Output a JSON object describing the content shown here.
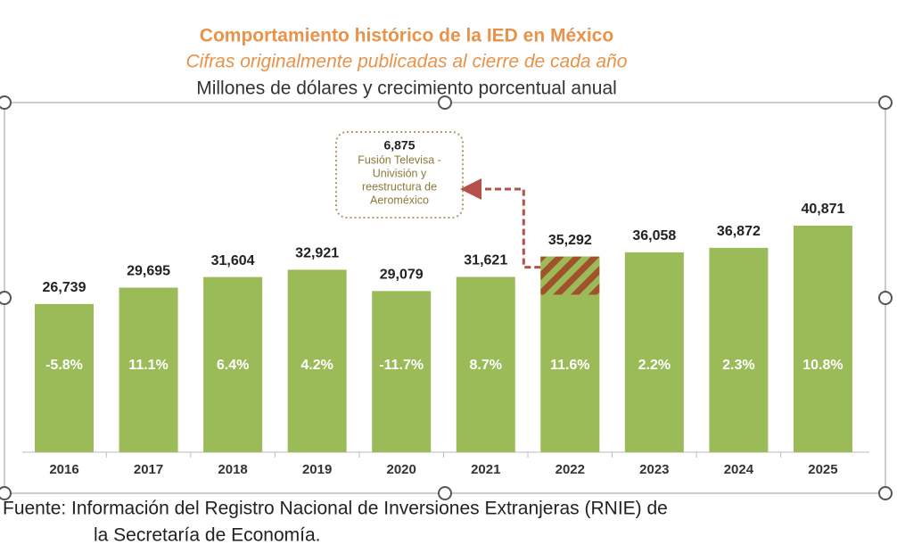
{
  "chart_data": {
    "type": "bar",
    "title": "Comportamiento histórico de la IED en México",
    "subtitle": "Cifras originalmente publicadas al cierre de cada año",
    "units_note": "Millones de dólares y crecimiento porcentual anual",
    "categories": [
      "2016",
      "2017",
      "2018",
      "2019",
      "2020",
      "2021",
      "2022",
      "2023",
      "2024",
      "2025"
    ],
    "values": [
      26739,
      29695,
      31604,
      32921,
      29079,
      31621,
      35292,
      36058,
      36872,
      40871
    ],
    "value_labels": [
      "26,739",
      "29,695",
      "31,604",
      "32,921",
      "29,079",
      "31,621",
      "35,292",
      "36,058",
      "36,872",
      "40,871"
    ],
    "growth_labels": [
      "-5.8%",
      "11.1%",
      "6.4%",
      "4.2%",
      "-11.7%",
      "8.7%",
      "11.6%",
      "2.2%",
      "2.3%",
      "10.8%"
    ],
    "color": "#9bbb59",
    "hatched_segment": {
      "category": "2022",
      "value": 6875,
      "value_label": "6,875",
      "text_lines": [
        "Fusión Televisa -",
        "Univisión y",
        "reestructura de",
        "Aeroméxico"
      ],
      "color": "#a0522d"
    },
    "source": [
      "Fuente: Información del Registro Nacional de Inversiones Extranjeras (RNIE) de",
      "la Secretaría de Economía."
    ]
  }
}
